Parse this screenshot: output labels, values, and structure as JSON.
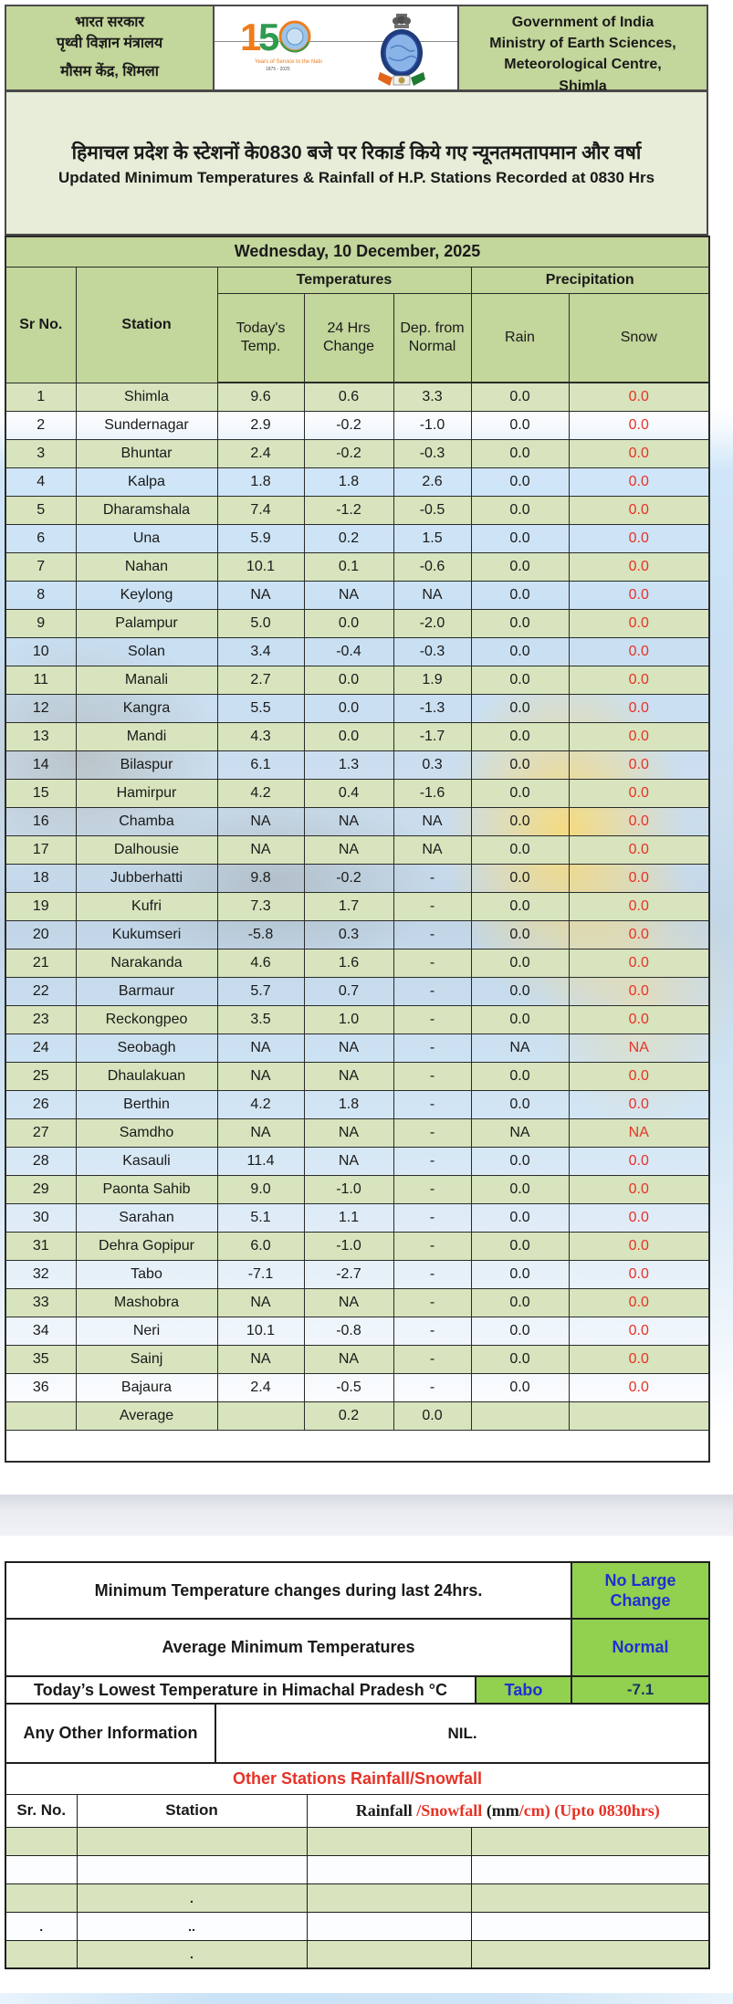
{
  "page": {
    "header": {
      "left_lines": [
        "भारत सरकार",
        "पृथ्वी विज्ञान मंत्रालय",
        "मौसम केंद्र, शिमला"
      ],
      "right_lines": [
        "Government of India",
        "Ministry of Earth Sciences,",
        "Meteorological Centre,",
        "Shimla"
      ]
    },
    "icons": {
      "logo_150": "imd-150th-anniversary-logo",
      "emblem": "india-meteorological-department-emblem"
    },
    "title": {
      "hindi": "हिमाचल प्रदेश के स्टेशनों के0830 बजे पर रिकार्ड किये गए न्यूनतमतापमान और वर्षा",
      "english": "Updated Minimum Temperatures & Rainfall of H.P. Stations Recorded at 0830 Hrs"
    },
    "date_line": "Wednesday, 10 December, 2025"
  },
  "main_table": {
    "group_headers": {
      "temperatures": "Temperatures",
      "precipitation": "Precipitation"
    },
    "columns": {
      "sr": "Sr No.",
      "station": "Station",
      "today": "Today's Temp.",
      "change": "24 Hrs Change",
      "dep": "Dep. from Normal",
      "rain": "Rain",
      "snow": "Snow"
    },
    "rows": [
      [
        "1",
        "Shimla",
        "9.6",
        "0.6",
        "3.3",
        "0.0",
        "0.0"
      ],
      [
        "2",
        "Sundernagar",
        "2.9",
        "-0.2",
        "-1.0",
        "0.0",
        "0.0"
      ],
      [
        "3",
        "Bhuntar",
        "2.4",
        "-0.2",
        "-0.3",
        "0.0",
        "0.0"
      ],
      [
        "4",
        "Kalpa",
        "1.8",
        "1.8",
        "2.6",
        "0.0",
        "0.0"
      ],
      [
        "5",
        "Dharamshala",
        "7.4",
        "-1.2",
        "-0.5",
        "0.0",
        "0.0"
      ],
      [
        "6",
        "Una",
        "5.9",
        "0.2",
        "1.5",
        "0.0",
        "0.0"
      ],
      [
        "7",
        "Nahan",
        "10.1",
        "0.1",
        "-0.6",
        "0.0",
        "0.0"
      ],
      [
        "8",
        "Keylong",
        "NA",
        "NA",
        "NA",
        "0.0",
        "0.0"
      ],
      [
        "9",
        "Palampur",
        "5.0",
        "0.0",
        "-2.0",
        "0.0",
        "0.0"
      ],
      [
        "10",
        "Solan",
        "3.4",
        "-0.4",
        "-0.3",
        "0.0",
        "0.0"
      ],
      [
        "11",
        "Manali",
        "2.7",
        "0.0",
        "1.9",
        "0.0",
        "0.0"
      ],
      [
        "12",
        "Kangra",
        "5.5",
        "0.0",
        "-1.3",
        "0.0",
        "0.0"
      ],
      [
        "13",
        "Mandi",
        "4.3",
        "0.0",
        "-1.7",
        "0.0",
        "0.0"
      ],
      [
        "14",
        "Bilaspur",
        "6.1",
        "1.3",
        "0.3",
        "0.0",
        "0.0"
      ],
      [
        "15",
        "Hamirpur",
        "4.2",
        "0.4",
        "-1.6",
        "0.0",
        "0.0"
      ],
      [
        "16",
        "Chamba",
        "NA",
        "NA",
        "NA",
        "0.0",
        "0.0"
      ],
      [
        "17",
        "Dalhousie",
        "NA",
        "NA",
        "NA",
        "0.0",
        "0.0"
      ],
      [
        "18",
        "Jubberhatti",
        "9.8",
        "-0.2",
        "-",
        "0.0",
        "0.0"
      ],
      [
        "19",
        "Kufri",
        "7.3",
        "1.7",
        "-",
        "0.0",
        "0.0"
      ],
      [
        "20",
        "Kukumseri",
        "-5.8",
        "0.3",
        "-",
        "0.0",
        "0.0"
      ],
      [
        "21",
        "Narakanda",
        "4.6",
        "1.6",
        "-",
        "0.0",
        "0.0"
      ],
      [
        "22",
        "Barmaur",
        "5.7",
        "0.7",
        "-",
        "0.0",
        "0.0"
      ],
      [
        "23",
        "Reckongpeo",
        "3.5",
        "1.0",
        "-",
        "0.0",
        "0.0"
      ],
      [
        "24",
        "Seobagh",
        "NA",
        "NA",
        "-",
        "NA",
        "NA"
      ],
      [
        "25",
        "Dhaulakuan",
        "NA",
        "NA",
        "-",
        "0.0",
        "0.0"
      ],
      [
        "26",
        "Berthin",
        "4.2",
        "1.8",
        "-",
        "0.0",
        "0.0"
      ],
      [
        "27",
        "Samdho",
        "NA",
        "NA",
        "-",
        "NA",
        "NA"
      ],
      [
        "28",
        "Kasauli",
        "11.4",
        "NA",
        "-",
        "0.0",
        "0.0"
      ],
      [
        "29",
        "Paonta Sahib",
        "9.0",
        "-1.0",
        "-",
        "0.0",
        "0.0"
      ],
      [
        "30",
        "Sarahan",
        "5.1",
        "1.1",
        "-",
        "0.0",
        "0.0"
      ],
      [
        "31",
        "Dehra Gopipur",
        "6.0",
        "-1.0",
        "-",
        "0.0",
        "0.0"
      ],
      [
        "32",
        "Tabo",
        "-7.1",
        "-2.7",
        "-",
        "0.0",
        "0.0"
      ],
      [
        "33",
        "Mashobra",
        "NA",
        "NA",
        "-",
        "0.0",
        "0.0"
      ],
      [
        "34",
        "Neri",
        "10.1",
        "-0.8",
        "-",
        "0.0",
        "0.0"
      ],
      [
        "35",
        "Sainj",
        "NA",
        "NA",
        "-",
        "0.0",
        "0.0"
      ],
      [
        "36",
        "Bajaura",
        "2.4",
        "-0.5",
        "-",
        "0.0",
        "0.0"
      ]
    ],
    "average_row": [
      "",
      "Average",
      "",
      "0.2",
      "0.0",
      "",
      ""
    ]
  },
  "summary": {
    "row1_label": "Minimum Temperature changes during last 24hrs.",
    "row1_value": "No Large Change",
    "row2_label": "Average Minimum Temperatures",
    "row2_value": "Normal",
    "row3_label": "Today’s Lowest Temperature in Himachal Pradesh °C",
    "row3_station": "Tabo",
    "row3_value": "-7.1",
    "row4_label": "Any Other Information",
    "row4_value": "NIL."
  },
  "other_stations": {
    "title": "Other Stations Rainfall/Snowfall",
    "header_sr": "Sr. No.",
    "header_station": "Station",
    "header_rainfall_parts": [
      {
        "text": "Rainfall ",
        "color": "black"
      },
      {
        "text": "/Snowfall ",
        "color": "red"
      },
      {
        "text": " (mm",
        "color": "black"
      },
      {
        "text": "/cm)",
        "color": "red"
      },
      {
        "text": " (Upto 0830hrs)",
        "color": "red"
      }
    ],
    "rows": [
      [
        "",
        "",
        "",
        ""
      ],
      [
        "",
        "",
        "",
        ""
      ],
      [
        "",
        ".",
        "",
        ""
      ],
      [
        ".",
        "..",
        "",
        ""
      ],
      [
        "",
        ".",
        "",
        ""
      ]
    ]
  },
  "colors": {
    "header_green": "#c3d69b",
    "row_green": "#d7e4bd",
    "bright_green": "#92d050",
    "blue_text": "#1f2fd4",
    "navy_text": "#17365d",
    "red_text": "#e63226"
  }
}
